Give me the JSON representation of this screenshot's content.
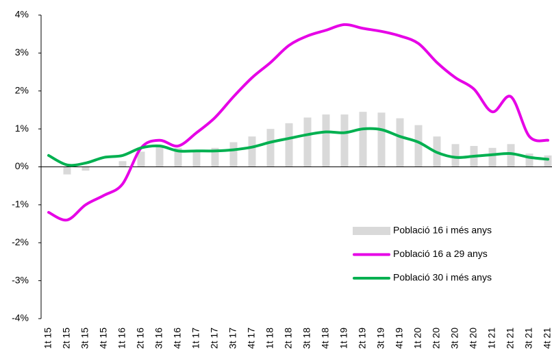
{
  "chart_data": {
    "type": "bar_line",
    "categories": [
      "1t 15",
      "2t 15",
      "3t 15",
      "4t 15",
      "1t 16",
      "2t 16",
      "3t 16",
      "4t 16",
      "1t 17",
      "2t 17",
      "3t 17",
      "4t 17",
      "1t 18",
      "2t 18",
      "3t 18",
      "4t 18",
      "1t 19",
      "2t 19",
      "3t 19",
      "4t 19",
      "1t 20",
      "2t 20",
      "3t 20",
      "4t 20",
      "1t 21",
      "2t 21",
      "3t 21",
      "4t 21"
    ],
    "series": [
      {
        "name": "Població 16 i més anys",
        "type": "bar",
        "color": "#d9d9d9",
        "values": [
          0,
          -0.2,
          -0.1,
          0,
          0.15,
          0.4,
          0.55,
          0.5,
          0.45,
          0.5,
          0.65,
          0.8,
          1.0,
          1.15,
          1.3,
          1.38,
          1.38,
          1.45,
          1.43,
          1.28,
          1.1,
          0.8,
          0.6,
          0.55,
          0.5,
          0.6,
          0.35,
          0.3
        ]
      },
      {
        "name": "Població 16 a 29 anys",
        "type": "line",
        "color": "#e600e6",
        "values": [
          -1.2,
          -1.4,
          -1.0,
          -0.75,
          -0.45,
          0.5,
          0.7,
          0.55,
          0.9,
          1.3,
          1.85,
          2.35,
          2.75,
          3.2,
          3.45,
          3.6,
          3.75,
          3.65,
          3.57,
          3.45,
          3.25,
          2.75,
          2.35,
          2.05,
          1.45,
          1.85,
          0.8,
          0.7
        ]
      },
      {
        "name": "Població 30 i més anys",
        "type": "line",
        "color": "#00b050",
        "values": [
          0.3,
          0.05,
          0.1,
          0.25,
          0.3,
          0.5,
          0.55,
          0.42,
          0.42,
          0.42,
          0.45,
          0.52,
          0.65,
          0.75,
          0.85,
          0.92,
          0.9,
          1.0,
          0.98,
          0.8,
          0.65,
          0.38,
          0.25,
          0.28,
          0.32,
          0.35,
          0.25,
          0.2
        ]
      }
    ],
    "ylim": [
      -4,
      4
    ],
    "yticks": [
      {
        "value": -4,
        "label": "-4%"
      },
      {
        "value": -3,
        "label": "-3%"
      },
      {
        "value": -2,
        "label": "-2%"
      },
      {
        "value": -1,
        "label": "-1%"
      },
      {
        "value": 0,
        "label": "0%"
      },
      {
        "value": 1,
        "label": "1%"
      },
      {
        "value": 2,
        "label": "2%"
      },
      {
        "value": 3,
        "label": "3%"
      },
      {
        "value": 4,
        "label": "4%"
      }
    ],
    "legend": "lower right"
  }
}
